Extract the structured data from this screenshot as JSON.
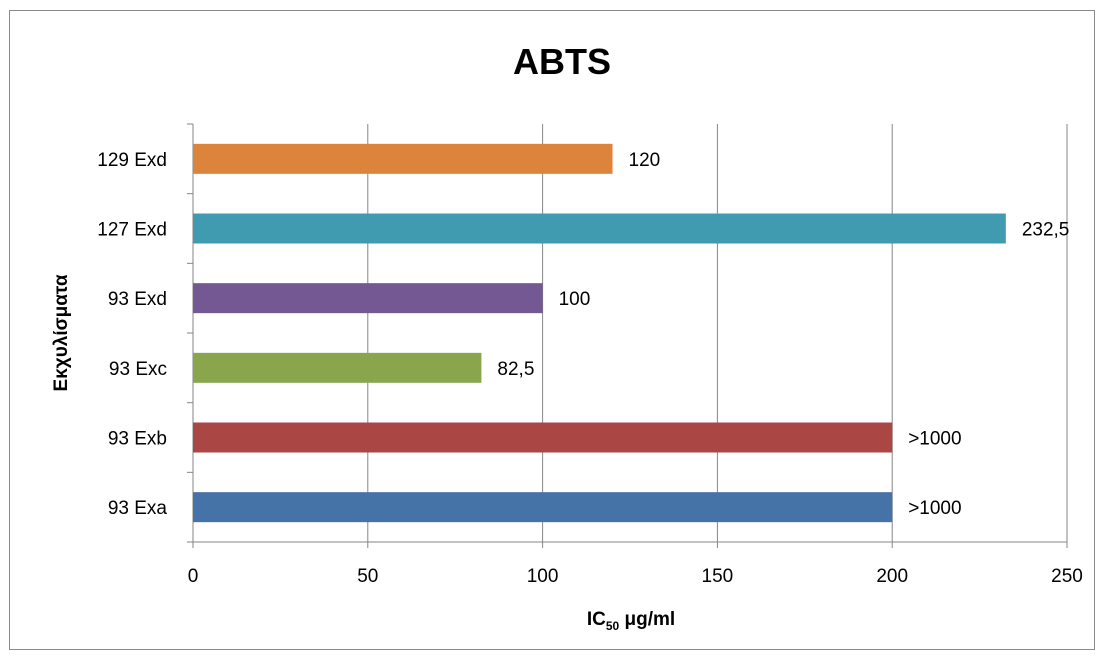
{
  "chart_data": {
    "type": "bar",
    "orientation": "horizontal",
    "title": "ABTS",
    "xlabel": "IC",
    "xlabel_subscript": "50",
    "xlabel_unit": " μg/ml",
    "ylabel": "Εκχυλίσματα",
    "xlim": [
      0,
      250
    ],
    "x_ticks": [
      "0",
      "50",
      "100",
      "150",
      "200",
      "250"
    ],
    "grid": "vertical",
    "legend": "none",
    "categories": [
      "129 Exd",
      "127 Exd",
      "93 Exd",
      "93 Exc",
      "93 Exb",
      "93 Exa"
    ],
    "values": [
      120,
      232.5,
      100,
      82.5,
      200,
      200
    ],
    "data_labels": [
      "120",
      "232,5",
      "100",
      "82,5",
      ">1000",
      ">1000"
    ],
    "colors": [
      "#dd843c",
      "#409bb0",
      "#735893",
      "#8aa64d",
      "#aa4644",
      "#4572a7"
    ]
  }
}
